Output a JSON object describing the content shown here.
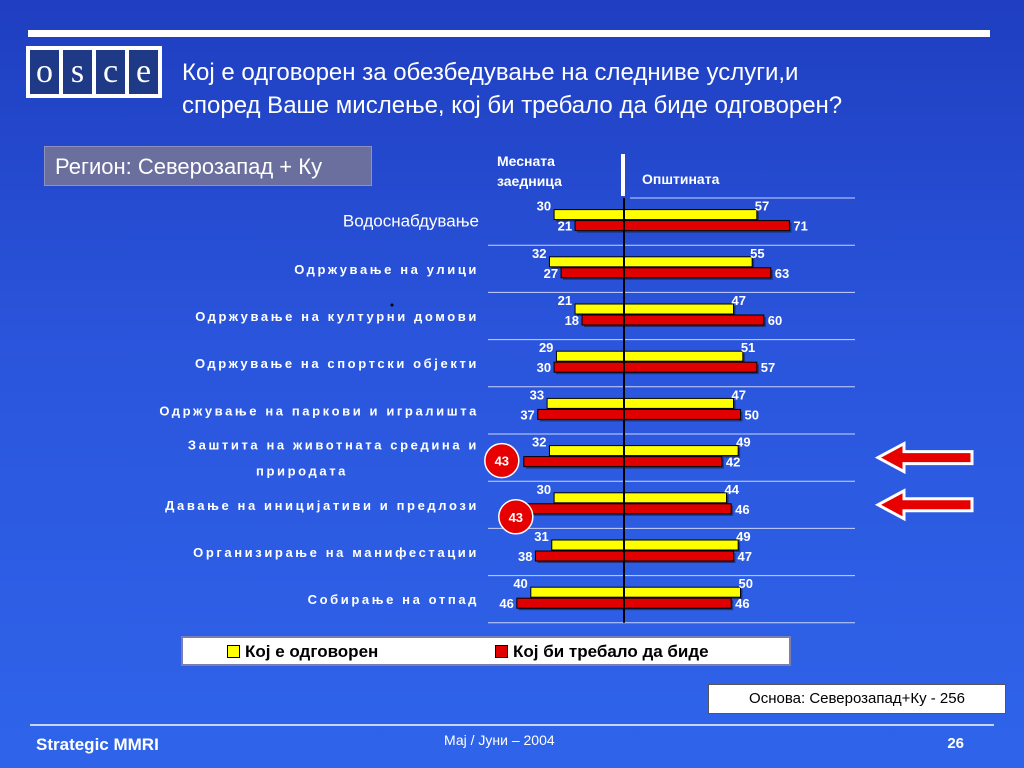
{
  "logo": {
    "letters": [
      "o",
      "s",
      "c",
      "e"
    ]
  },
  "title": {
    "line1": "Кој е одговорен за обезбедување на следниве услуги,и",
    "line2": "според Ваше мислење, кој би требало да биде одговорен?"
  },
  "region": "Регион: Северозапад + Ку",
  "colors": {
    "yellow": "#ffff00",
    "red": "#e00000",
    "highlight_circle": "#e60000",
    "arrow": "#e60000"
  },
  "chart_data": {
    "type": "bar",
    "orientation": "horizontal-diverging",
    "column_headers": [
      "Месната заедница",
      "Општината"
    ],
    "categories": [
      "Водоснабдување",
      "Одржување на улици",
      "Одржување на културни домови",
      "Одржување на спортски објекти",
      "Одржување на паркови и игралишта",
      "Заштита на животната средина и природата",
      "Давање на иницијативи и предлози",
      "Организирање на манифестации",
      "Собирање на отпад"
    ],
    "series": [
      {
        "name": "Кој е одговорен",
        "group": "Месната заедница",
        "color": "yellow",
        "values": [
          30,
          32,
          21,
          29,
          33,
          32,
          30,
          31,
          40
        ]
      },
      {
        "name": "Кој би требало да биде",
        "group": "Месната заедница",
        "color": "red",
        "values": [
          21,
          27,
          18,
          30,
          37,
          43,
          43,
          38,
          46
        ]
      },
      {
        "name": "Кој е одговорен",
        "group": "Општината",
        "color": "yellow",
        "values": [
          57,
          55,
          47,
          51,
          47,
          49,
          44,
          49,
          50
        ]
      },
      {
        "name": "Кој би требало да биде",
        "group": "Општината",
        "color": "red",
        "values": [
          71,
          63,
          60,
          57,
          50,
          42,
          46,
          47,
          46
        ]
      }
    ],
    "highlighted_categories": [
      5,
      6
    ],
    "legend": [
      "Кој е одговорен",
      "Кој би требало да биде"
    ],
    "legend_placement": "bottom"
  },
  "base_note": "Основа: Северозапад+Ку - 256",
  "footer": {
    "left": "Strategic MMRI",
    "center": "Мај / Јуни – 2004",
    "page": "26"
  }
}
